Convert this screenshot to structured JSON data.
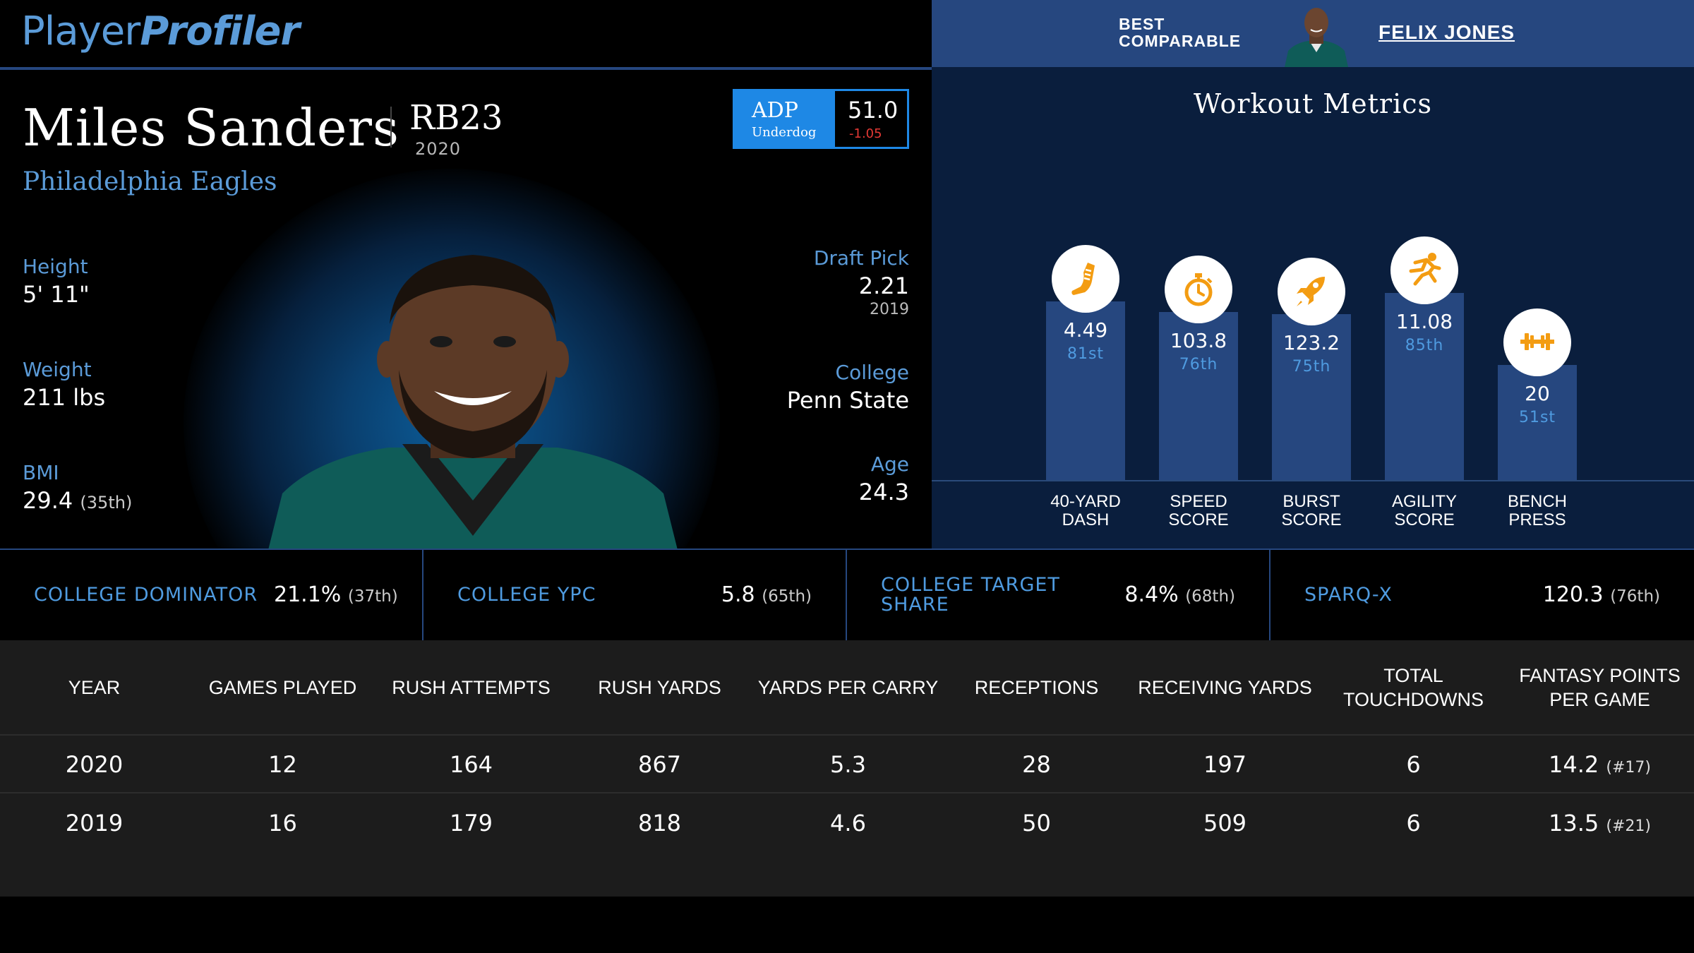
{
  "brand": {
    "logo_part1": "Player",
    "logo_part2": "Profiler"
  },
  "comparable": {
    "label_line1": "BEST",
    "label_line2": "COMPARABLE",
    "name": "FELIX JONES"
  },
  "player": {
    "name": "Miles Sanders",
    "position_rank": "RB23",
    "season": "2020",
    "team": "Philadelphia Eagles"
  },
  "adp": {
    "label": "ADP",
    "source": "Underdog",
    "value": "51.0",
    "change": "-1.05"
  },
  "bio_left": {
    "height_label": "Height",
    "height_value": "5' 11\"",
    "weight_label": "Weight",
    "weight_value": "211 lbs",
    "bmi_label": "BMI",
    "bmi_value": "29.4",
    "bmi_pct": "(35th)"
  },
  "bio_right": {
    "draft_label": "Draft Pick",
    "draft_value": "2.21",
    "draft_year": "2019",
    "college_label": "College",
    "college_value": "Penn State",
    "age_label": "Age",
    "age_value": "24.3"
  },
  "workout": {
    "title": "Workout Metrics",
    "metrics": [
      {
        "label_1": "40-YARD",
        "label_2": "DASH",
        "value": "4.49",
        "percentile_label": "81st",
        "percentile": 81,
        "icon": "running-shoe-icon"
      },
      {
        "label_1": "SPEED",
        "label_2": "SCORE",
        "value": "103.8",
        "percentile_label": "76th",
        "percentile": 76,
        "icon": "stopwatch-icon"
      },
      {
        "label_1": "BURST",
        "label_2": "SCORE",
        "value": "123.2",
        "percentile_label": "75th",
        "percentile": 75,
        "icon": "rocket-icon"
      },
      {
        "label_1": "AGILITY",
        "label_2": "SCORE",
        "value": "11.08",
        "percentile_label": "85th",
        "percentile": 85,
        "icon": "running-figure-icon"
      },
      {
        "label_1": "BENCH",
        "label_2": "PRESS",
        "value": "20",
        "percentile_label": "51st",
        "percentile": 51,
        "icon": "barbell-icon"
      }
    ],
    "colors": {
      "bar": "#26477f",
      "icon": "#f39c12",
      "percentile": "#4f9be0"
    }
  },
  "college_stats": [
    {
      "label_1": "COLLEGE DOMINATOR",
      "label_2": "",
      "value": "21.1%",
      "pct": "(37th)"
    },
    {
      "label_1": "COLLEGE YPC",
      "label_2": "",
      "value": "5.8",
      "pct": "(65th)"
    },
    {
      "label_1": "COLLEGE TARGET",
      "label_2": "SHARE",
      "value": "8.4%",
      "pct": "(68th)"
    },
    {
      "label_1": "SPARQ-X",
      "label_2": "",
      "value": "120.3",
      "pct": "(76th)"
    }
  ],
  "season_table": {
    "headers": [
      "YEAR",
      "GAMES PLAYED",
      "RUSH ATTEMPTS",
      "RUSH YARDS",
      "YARDS PER CARRY",
      "RECEPTIONS",
      "RECEIVING YARDS",
      "TOTAL TOUCHDOWNS",
      "FANTASY POINTS PER GAME"
    ],
    "rows": [
      {
        "year": "2020",
        "games": "12",
        "rush_att": "164",
        "rush_yds": "867",
        "ypc": "5.3",
        "rec": "28",
        "rec_yds": "197",
        "td": "6",
        "fppg": "14.2",
        "fppg_rank": "(#17)"
      },
      {
        "year": "2019",
        "games": "16",
        "rush_att": "179",
        "rush_yds": "818",
        "ypc": "4.6",
        "rec": "50",
        "rec_yds": "509",
        "td": "6",
        "fppg": "13.5",
        "fppg_rank": "(#21)"
      }
    ]
  },
  "colors": {
    "accent_blue": "#5b9bd8",
    "brand_navy": "#26477f",
    "adp_blue": "#1e88e5",
    "negative": "#e53935"
  }
}
